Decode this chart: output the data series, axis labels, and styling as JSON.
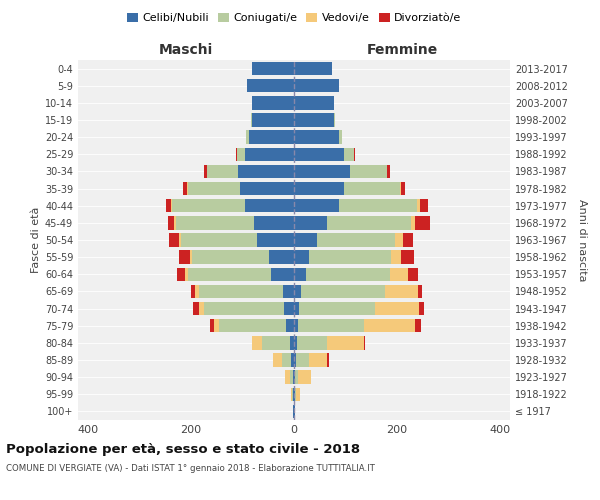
{
  "age_groups": [
    "100+",
    "95-99",
    "90-94",
    "85-89",
    "80-84",
    "75-79",
    "70-74",
    "65-69",
    "60-64",
    "55-59",
    "50-54",
    "45-49",
    "40-44",
    "35-39",
    "30-34",
    "25-29",
    "20-24",
    "15-19",
    "10-14",
    "5-9",
    "0-4"
  ],
  "birth_years": [
    "≤ 1917",
    "1918-1922",
    "1923-1927",
    "1928-1932",
    "1933-1937",
    "1938-1942",
    "1943-1947",
    "1948-1952",
    "1953-1957",
    "1958-1962",
    "1963-1967",
    "1968-1972",
    "1973-1977",
    "1978-1982",
    "1983-1987",
    "1988-1992",
    "1993-1997",
    "1998-2002",
    "2003-2007",
    "2008-2012",
    "2013-2017"
  ],
  "colors": {
    "celibe": "#3a6ea8",
    "coniugato": "#b8cca0",
    "vedovo": "#f5c97a",
    "divorziato": "#cc2222"
  },
  "maschi": {
    "celibe": [
      1,
      1,
      2,
      5,
      8,
      15,
      20,
      22,
      45,
      48,
      72,
      78,
      95,
      105,
      108,
      95,
      88,
      82,
      82,
      92,
      82
    ],
    "coniugato": [
      0,
      2,
      5,
      18,
      55,
      130,
      155,
      162,
      162,
      150,
      148,
      152,
      142,
      102,
      62,
      15,
      5,
      2,
      0,
      0,
      0
    ],
    "vedovo": [
      0,
      3,
      10,
      18,
      18,
      10,
      10,
      8,
      5,
      5,
      4,
      3,
      2,
      1,
      0,
      0,
      0,
      0,
      0,
      0,
      0
    ],
    "divorziato": [
      0,
      0,
      0,
      0,
      0,
      8,
      12,
      8,
      15,
      20,
      20,
      12,
      10,
      8,
      5,
      3,
      0,
      0,
      0,
      0,
      0
    ]
  },
  "femmine": {
    "nubile": [
      1,
      1,
      2,
      4,
      6,
      8,
      10,
      14,
      24,
      30,
      45,
      65,
      88,
      98,
      108,
      98,
      88,
      78,
      78,
      88,
      74
    ],
    "coniugata": [
      0,
      2,
      6,
      25,
      58,
      128,
      148,
      162,
      162,
      158,
      152,
      162,
      152,
      108,
      73,
      18,
      5,
      2,
      0,
      0,
      0
    ],
    "vedova": [
      0,
      8,
      25,
      35,
      72,
      100,
      85,
      65,
      35,
      20,
      15,
      8,
      5,
      2,
      0,
      0,
      0,
      0,
      0,
      0,
      0
    ],
    "divorziata": [
      0,
      0,
      0,
      4,
      3,
      10,
      10,
      8,
      20,
      25,
      20,
      30,
      15,
      8,
      5,
      3,
      0,
      0,
      0,
      0,
      0
    ]
  },
  "xlim": 420,
  "title": "Popolazione per età, sesso e stato civile - 2018",
  "subtitle": "COMUNE DI VERGIATE (VA) - Dati ISTAT 1° gennaio 2018 - Elaborazione TUTTITALIA.IT",
  "ylabel_left": "Fasce di età",
  "ylabel_right": "Anni di nascita",
  "xlabel_left": "Maschi",
  "xlabel_right": "Femmine",
  "bg_color": "#f0f0f0"
}
